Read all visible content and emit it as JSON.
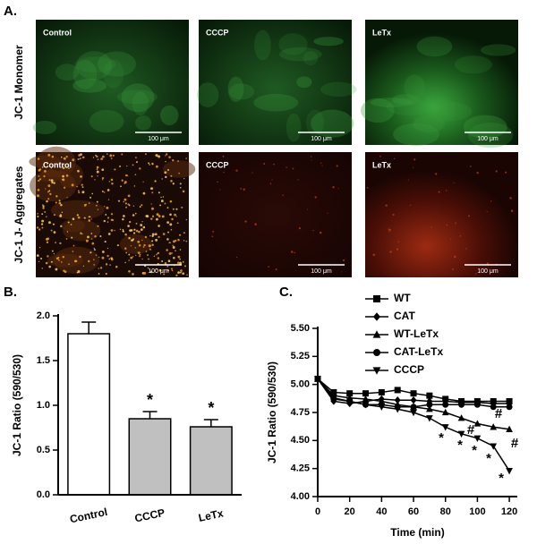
{
  "panel_a": {
    "label": "A.",
    "rows": [
      {
        "label": "JC-1 Monomer",
        "images": [
          {
            "label": "Control",
            "scale_bar": "100 μm"
          },
          {
            "label": "CCCP",
            "scale_bar": "100 μm"
          },
          {
            "label": "LeTx",
            "scale_bar": "100 μm"
          }
        ]
      },
      {
        "label": "JC-1 J- Aggregates",
        "images": [
          {
            "label": "Control",
            "scale_bar": "100 μm"
          },
          {
            "label": "CCCP",
            "scale_bar": "100 μm"
          },
          {
            "label": "LeTx",
            "scale_bar": "100 μm"
          }
        ]
      }
    ]
  },
  "chart_data": [
    {
      "type": "bar",
      "panel_label": "B.",
      "y_label": "JC-1 Ratio (590/530)",
      "categories": [
        "Control",
        "CCCP",
        "LeTx"
      ],
      "values": [
        1.8,
        0.85,
        0.76
      ],
      "errors": [
        0.13,
        0.08,
        0.08
      ],
      "colors": [
        "#ffffff",
        "#c0c0c0",
        "#c0c0c0"
      ],
      "annotations": [
        "*",
        "*"
      ],
      "ylim": [
        0,
        2
      ],
      "yticks": [
        {
          "value": 0,
          "label": "0.0"
        },
        {
          "value": 0.5,
          "label": "0.5"
        },
        {
          "value": 1,
          "label": "1.0"
        },
        {
          "value": 1.5,
          "label": "1.5"
        },
        {
          "value": 2,
          "label": "2.0"
        }
      ]
    },
    {
      "type": "line",
      "panel_label": "C.",
      "x_label": "Time (min)",
      "y_label": "JC-1 Ratio (590/530)",
      "x": [
        0,
        10,
        20,
        30,
        40,
        50,
        60,
        70,
        80,
        90,
        100,
        110,
        120
      ],
      "series": [
        {
          "name": "WT",
          "color": "#000000",
          "marker": "square",
          "values": [
            5.05,
            4.93,
            4.92,
            4.92,
            4.93,
            4.95,
            4.92,
            4.9,
            4.87,
            4.85,
            4.85,
            4.85,
            4.85
          ]
        },
        {
          "name": "CAT",
          "color": "#000000",
          "marker": "diamond",
          "values": [
            5.05,
            4.85,
            4.83,
            4.85,
            4.87,
            4.86,
            4.86,
            4.85,
            4.85,
            4.84,
            4.84,
            4.83,
            4.83
          ]
        },
        {
          "name": "WT-LeTx",
          "color": "#000000",
          "marker": "triangle",
          "values": [
            5.05,
            4.9,
            4.88,
            4.87,
            4.85,
            4.82,
            4.8,
            4.78,
            4.75,
            4.7,
            4.65,
            4.62,
            4.6
          ]
        },
        {
          "name": "CAT-LeTx",
          "color": "#000000",
          "marker": "circle",
          "values": [
            5.05,
            4.87,
            4.85,
            4.82,
            4.82,
            4.8,
            4.8,
            4.82,
            4.82,
            4.82,
            4.82,
            4.8,
            4.8
          ]
        },
        {
          "name": "CCCP",
          "color": "#000000",
          "marker": "triangle-down",
          "values": [
            5.05,
            4.88,
            4.85,
            4.82,
            4.8,
            4.78,
            4.75,
            4.7,
            4.62,
            4.56,
            4.52,
            4.45,
            4.23
          ]
        }
      ],
      "annotations": [
        "*",
        "*",
        "*",
        "*",
        "*",
        "#",
        "#",
        "#"
      ],
      "xlim": [
        0,
        125
      ],
      "xticks": [
        0,
        20,
        40,
        60,
        80,
        100,
        120
      ],
      "ylim": [
        4,
        5.5
      ],
      "yticks": [
        {
          "value": 4,
          "label": "4.00"
        },
        {
          "value": 4.25,
          "label": "4.25"
        },
        {
          "value": 4.5,
          "label": "4.50"
        },
        {
          "value": 4.75,
          "label": "4.75"
        },
        {
          "value": 5,
          "label": "5.00"
        },
        {
          "value": 5.25,
          "label": "5.25"
        },
        {
          "value": 5.5,
          "label": "5.50"
        }
      ],
      "legend": "top-left"
    }
  ]
}
